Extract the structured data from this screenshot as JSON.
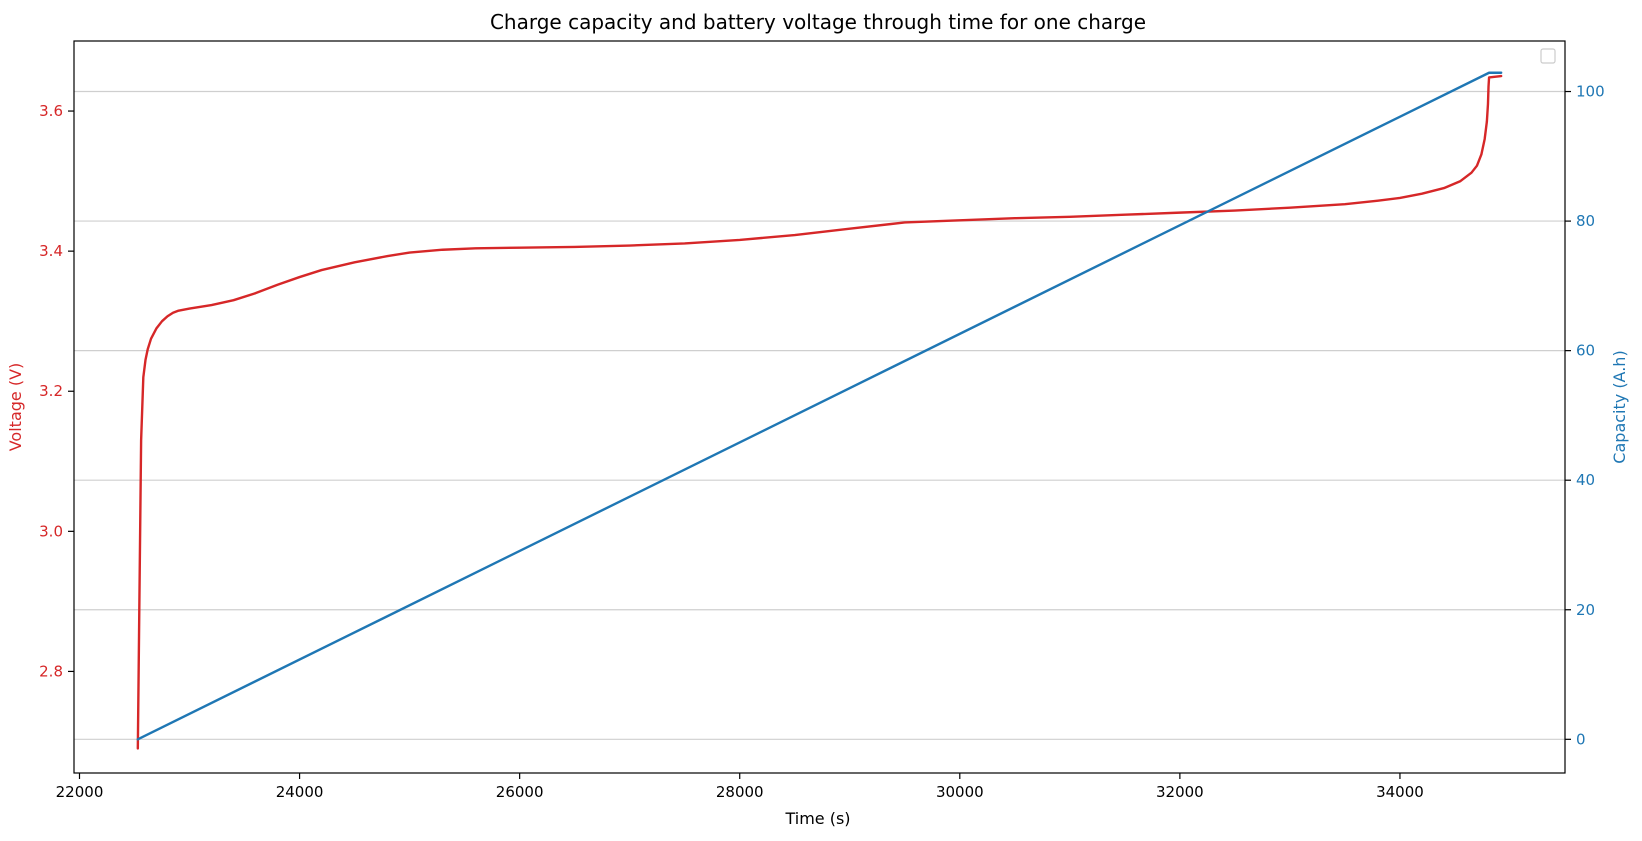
{
  "chart_data": {
    "type": "line",
    "title": "Charge capacity and battery voltage through time for one charge",
    "xlabel": "Time (s)",
    "xlim": [
      21950,
      35500
    ],
    "xticks": [
      22000,
      24000,
      26000,
      28000,
      30000,
      32000,
      34000
    ],
    "grid": "horizontal lines at right-axis ticks",
    "legend": "top-right, empty",
    "y_left": {
      "label": "Voltage (V)",
      "color": "#d62728",
      "ylim": [
        2.655,
        3.7
      ],
      "ticks": [
        2.8,
        3.0,
        3.2,
        3.4,
        3.6
      ]
    },
    "y_right": {
      "label": "Capacity (A.h)",
      "color": "#1f77b4",
      "ylim": [
        -5.2,
        107.8
      ],
      "ticks": [
        0,
        20,
        40,
        60,
        80,
        100
      ]
    },
    "series": [
      {
        "axis": "left",
        "color": "#d62728",
        "x": [
          22530,
          22560,
          22580,
          22600,
          22620,
          22650,
          22700,
          22750,
          22800,
          22850,
          22900,
          23000,
          23200,
          23400,
          23600,
          23800,
          24000,
          24200,
          24500,
          24800,
          25000,
          25300,
          25600,
          26000,
          26500,
          27000,
          27500,
          28000,
          28500,
          29000,
          29500,
          30000,
          30500,
          31000,
          31500,
          32000,
          32500,
          33000,
          33500,
          33800,
          34000,
          34200,
          34400,
          34550,
          34650,
          34700,
          34740,
          34770,
          34790,
          34800,
          34805,
          34810,
          34920
        ],
        "values": [
          2.69,
          3.13,
          3.22,
          3.245,
          3.26,
          3.275,
          3.29,
          3.3,
          3.307,
          3.312,
          3.315,
          3.318,
          3.323,
          3.33,
          3.34,
          3.352,
          3.363,
          3.373,
          3.384,
          3.393,
          3.398,
          3.402,
          3.404,
          3.405,
          3.406,
          3.408,
          3.411,
          3.416,
          3.423,
          3.432,
          3.441,
          3.444,
          3.447,
          3.449,
          3.452,
          3.455,
          3.458,
          3.462,
          3.467,
          3.472,
          3.476,
          3.482,
          3.49,
          3.5,
          3.512,
          3.522,
          3.538,
          3.56,
          3.585,
          3.61,
          3.635,
          3.648,
          3.65
        ]
      },
      {
        "axis": "right",
        "color": "#1f77b4",
        "x": [
          22530,
          34810,
          34920
        ],
        "values": [
          0.0,
          102.9,
          102.9
        ]
      }
    ]
  }
}
